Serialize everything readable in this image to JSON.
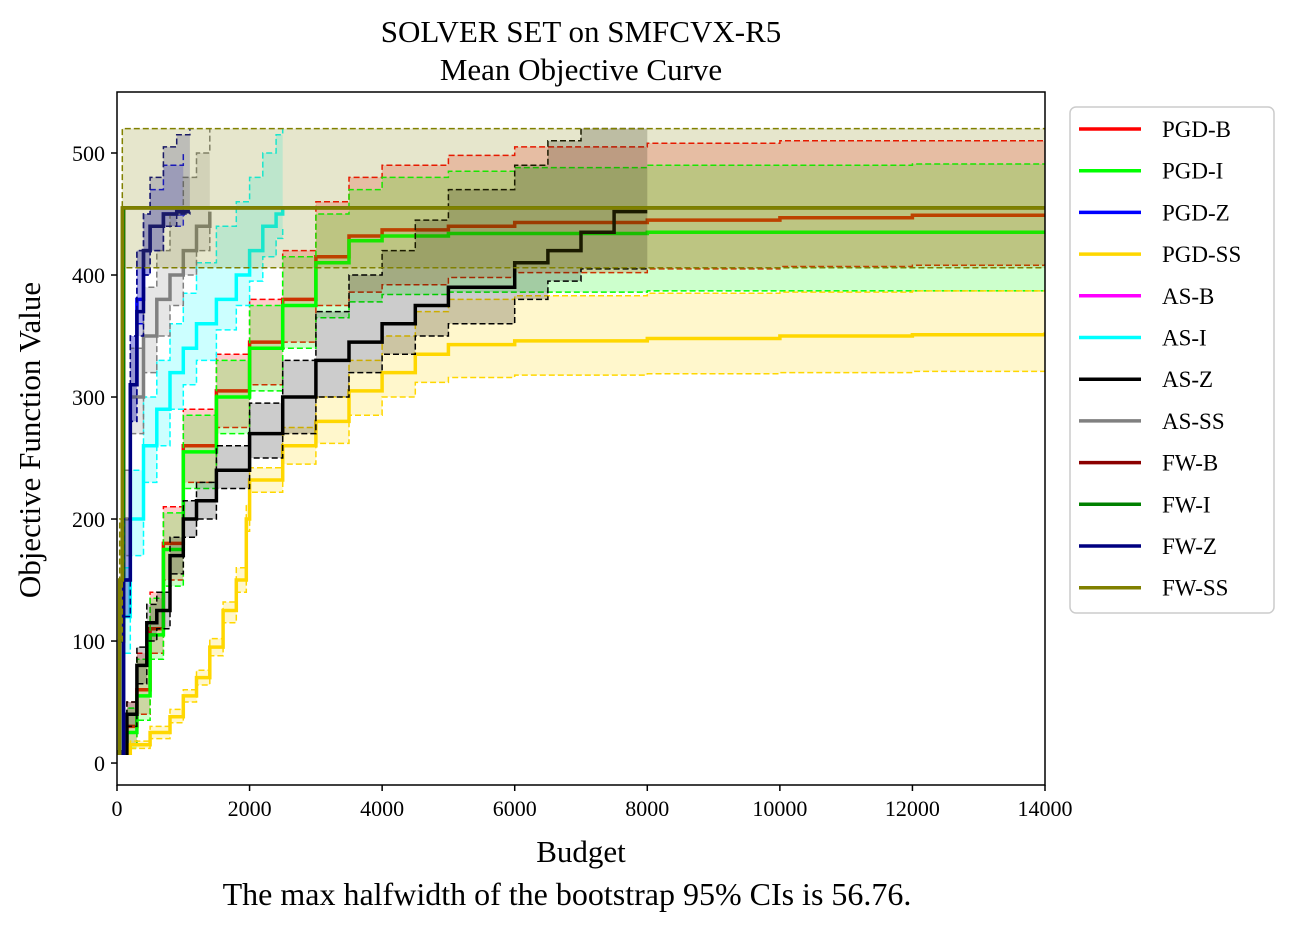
{
  "chart_data": {
    "type": "line",
    "title": "SOLVER SET on SMFCVX-R5",
    "subtitle": "Mean Objective Curve",
    "xlabel": "Budget",
    "ylabel": "Objective Function Value",
    "xlim": [
      0,
      14000
    ],
    "ylim": [
      -18,
      550
    ],
    "xticks": [
      0,
      2000,
      4000,
      6000,
      8000,
      10000,
      12000,
      14000
    ],
    "yticks": [
      0,
      100,
      200,
      300,
      400,
      500
    ],
    "grid": false,
    "legend_position": "outside-right",
    "series": [
      {
        "name": "PGD-B",
        "color": "#ff0000",
        "x": [
          0,
          150,
          300,
          500,
          700,
          1000,
          1500,
          2000,
          2500,
          3000,
          3500,
          4000,
          5000,
          6000,
          8000,
          10000,
          12000,
          14000
        ],
        "y": [
          8,
          30,
          60,
          110,
          180,
          260,
          305,
          345,
          380,
          415,
          432,
          437,
          440,
          443,
          445,
          447,
          449,
          450
        ],
        "ci_low": [
          8,
          15,
          40,
          90,
          150,
          230,
          275,
          310,
          345,
          375,
          386,
          392,
          398,
          402,
          405,
          407,
          408,
          409
        ],
        "ci_high": [
          10,
          50,
          90,
          140,
          210,
          290,
          335,
          380,
          420,
          460,
          480,
          490,
          498,
          505,
          508,
          510,
          510,
          510
        ]
      },
      {
        "name": "PGD-I",
        "color": "#00ff00",
        "x": [
          0,
          150,
          300,
          500,
          700,
          1000,
          1500,
          2000,
          2500,
          3000,
          3500,
          4000,
          5000,
          6000,
          8000,
          10000,
          12000,
          14000
        ],
        "y": [
          8,
          25,
          55,
          105,
          175,
          255,
          300,
          340,
          375,
          410,
          428,
          432,
          434,
          434,
          435,
          435,
          435,
          435
        ],
        "ci_low": [
          8,
          12,
          35,
          85,
          145,
          225,
          270,
          305,
          340,
          365,
          378,
          384,
          386,
          386,
          387,
          387,
          387,
          388
        ],
        "ci_high": [
          10,
          45,
          85,
          135,
          205,
          285,
          330,
          375,
          415,
          450,
          470,
          480,
          485,
          488,
          490,
          490,
          491,
          491
        ]
      },
      {
        "name": "PGD-Z",
        "color": "#0000ff",
        "x": [
          0,
          100,
          200,
          300,
          400,
          500,
          700,
          1000
        ],
        "y": [
          8,
          150,
          310,
          380,
          420,
          440,
          450,
          452
        ],
        "ci_low": [
          8,
          120,
          280,
          360,
          400,
          420,
          440,
          452
        ],
        "ci_high": [
          10,
          200,
          350,
          420,
          450,
          470,
          490,
          500
        ]
      },
      {
        "name": "PGD-SS",
        "color": "#ffd700",
        "x": [
          0,
          200,
          500,
          800,
          1000,
          1200,
          1400,
          1600,
          1800,
          1950,
          2000,
          2500,
          3000,
          3500,
          4000,
          4500,
          5000,
          6000,
          8000,
          10000,
          12000,
          14000
        ],
        "y": [
          8,
          15,
          25,
          38,
          55,
          70,
          95,
          125,
          150,
          200,
          232,
          260,
          280,
          305,
          320,
          335,
          343,
          346,
          348,
          350,
          351,
          353
        ],
        "ci_low": [
          8,
          12,
          20,
          33,
          50,
          64,
          88,
          115,
          140,
          190,
          222,
          245,
          262,
          285,
          300,
          312,
          316,
          318,
          319,
          320,
          321,
          322
        ],
        "ci_high": [
          10,
          18,
          30,
          44,
          60,
          76,
          102,
          132,
          160,
          212,
          242,
          275,
          300,
          330,
          350,
          370,
          380,
          383,
          385,
          386,
          387,
          388
        ]
      },
      {
        "name": "AS-B",
        "color": "#ff00ff",
        "x": [],
        "y": []
      },
      {
        "name": "AS-I",
        "color": "#00ffff",
        "x": [
          0,
          100,
          200,
          400,
          600,
          800,
          1000,
          1200,
          1500,
          1800,
          2000,
          2200,
          2400,
          2500
        ],
        "y": [
          8,
          120,
          200,
          260,
          290,
          320,
          340,
          360,
          380,
          400,
          420,
          440,
          450,
          455
        ],
        "ci_low": [
          8,
          90,
          170,
          230,
          260,
          290,
          310,
          330,
          355,
          375,
          395,
          415,
          430,
          440
        ],
        "ci_high": [
          10,
          160,
          240,
          300,
          330,
          360,
          385,
          410,
          440,
          460,
          480,
          500,
          515,
          520
        ]
      },
      {
        "name": "AS-Z",
        "color": "#000000",
        "x": [
          0,
          150,
          300,
          450,
          600,
          800,
          1000,
          1200,
          1500,
          2000,
          2500,
          3000,
          3500,
          4000,
          4500,
          5000,
          6000,
          6500,
          7000,
          7500,
          8000
        ],
        "y": [
          8,
          40,
          80,
          115,
          125,
          170,
          200,
          215,
          240,
          270,
          300,
          330,
          345,
          360,
          375,
          390,
          410,
          420,
          435,
          452,
          452
        ],
        "ci_low": [
          8,
          30,
          65,
          100,
          110,
          155,
          185,
          200,
          225,
          250,
          270,
          300,
          320,
          335,
          350,
          360,
          380,
          395,
          405,
          405,
          405
        ],
        "ci_high": [
          10,
          50,
          95,
          130,
          140,
          185,
          215,
          230,
          260,
          295,
          330,
          370,
          400,
          420,
          445,
          470,
          490,
          510,
          520,
          520,
          520
        ]
      },
      {
        "name": "AS-SS",
        "color": "#808080",
        "x": [
          0,
          100,
          200,
          400,
          600,
          800,
          1000,
          1200,
          1400
        ],
        "y": [
          8,
          200,
          300,
          350,
          380,
          400,
          420,
          440,
          452
        ],
        "ci_low": [
          8,
          170,
          270,
          320,
          350,
          375,
          400,
          420,
          440
        ],
        "ci_high": [
          10,
          240,
          340,
          390,
          420,
          450,
          480,
          500,
          520
        ]
      },
      {
        "name": "FW-B",
        "color": "#8b0000",
        "x": [
          0,
          40,
          100,
          14000
        ],
        "y": [
          8,
          100,
          455,
          455
        ]
      },
      {
        "name": "FW-I",
        "color": "#008000",
        "x": [
          0,
          40,
          100,
          14000
        ],
        "y": [
          8,
          100,
          455,
          455
        ]
      },
      {
        "name": "FW-Z",
        "color": "#000080",
        "x": [
          0,
          100,
          200,
          300,
          400,
          500,
          700,
          900,
          1100
        ],
        "y": [
          8,
          150,
          310,
          370,
          420,
          440,
          450,
          452,
          452
        ],
        "ci_low": [
          8,
          120,
          280,
          350,
          400,
          420,
          440,
          450,
          452
        ],
        "ci_high": [
          10,
          200,
          350,
          420,
          450,
          480,
          505,
          515,
          520
        ]
      },
      {
        "name": "FW-SS",
        "color": "#808000",
        "x": [
          0,
          40,
          80,
          14000
        ],
        "y": [
          8,
          150,
          455,
          455
        ],
        "ci_low": [
          8,
          100,
          406,
          406
        ],
        "ci_high": [
          10,
          200,
          520,
          520
        ]
      }
    ]
  },
  "caption": "The max halfwidth of the bootstrap 95% CIs is 56.76."
}
